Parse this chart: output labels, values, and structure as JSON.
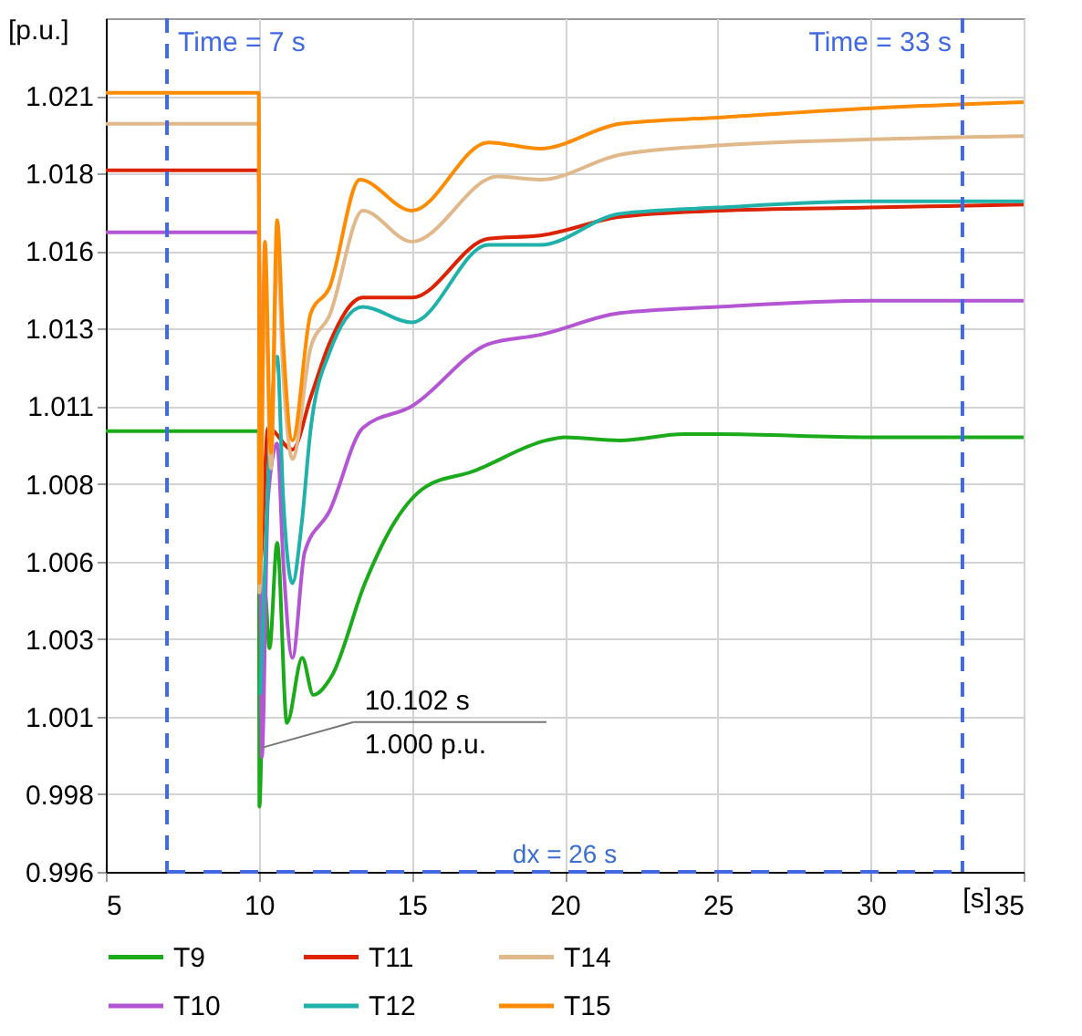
{
  "chart_data": {
    "type": "line",
    "xlabel": "[s]",
    "ylabel": "[p.u.]",
    "xlim": [
      5,
      35
    ],
    "xticks": [
      5,
      10,
      15,
      20,
      25,
      30,
      35
    ],
    "ylim": [
      0.996,
      1.0235
    ],
    "yticks": [
      {
        "value": 0.996,
        "label": "0.996"
      },
      {
        "value": 0.9985,
        "label": "0.998"
      },
      {
        "value": 1.001,
        "label": "1.001"
      },
      {
        "value": 1.0035,
        "label": "1.003"
      },
      {
        "value": 1.006,
        "label": "1.006"
      },
      {
        "value": 1.0085,
        "label": "1.008"
      },
      {
        "value": 1.011,
        "label": "1.011"
      },
      {
        "value": 1.0135,
        "label": "1.013"
      },
      {
        "value": 1.016,
        "label": "1.016"
      },
      {
        "value": 1.0185,
        "label": "1.018"
      },
      {
        "value": 1.021,
        "label": "1.021"
      }
    ],
    "grid": true,
    "legend": "bottom",
    "x": [
      5,
      10,
      10.02,
      10.2,
      10.35,
      10.6,
      10.92,
      11.42,
      11.78,
      12.38,
      13.47,
      14.46,
      15.45,
      17,
      19.4,
      20,
      21.8,
      23.9,
      25,
      30,
      35
    ],
    "series": [
      {
        "name": "T9",
        "color": "#1aaa1a",
        "values": [
          1.0102,
          1.0102,
          0.9981,
          1.005,
          1.0032,
          1.0066,
          1.0008,
          1.0029,
          1.0017,
          1.0023,
          1.0053,
          1.0073,
          1.0084,
          1.0089,
          1.0099,
          1.01,
          1.0099,
          1.0101,
          1.0101,
          1.01,
          1.01
        ]
      },
      {
        "name": "T10",
        "color": "#b455d4",
        "x": [
          5,
          10,
          10.1,
          10.3,
          10.6,
          10.8,
          11.1,
          11.5,
          12.3,
          13.4,
          15,
          17.5,
          19.2,
          21.8,
          25,
          30,
          35
        ],
        "values": [
          1.0166,
          1.0166,
          0.9997,
          1.008,
          1.0098,
          1.006,
          1.0029,
          1.0063,
          1.0076,
          1.0103,
          1.011,
          1.013,
          1.0133,
          1.014,
          1.0142,
          1.0144,
          1.0144
        ]
      },
      {
        "name": "T11",
        "color": "#dd2200",
        "x": [
          5,
          10,
          10.05,
          10.3,
          11.1,
          11.7,
          12.3,
          13.4,
          15,
          17.5,
          19.2,
          21.8,
          25,
          30,
          35
        ],
        "values": [
          1.0186,
          1.0186,
          1.006,
          1.0103,
          1.0096,
          1.0113,
          1.013,
          1.0145,
          1.0145,
          1.0164,
          1.0165,
          1.0171,
          1.0173,
          1.0174,
          1.0175
        ]
      },
      {
        "name": "T12",
        "color": "#20b2aa",
        "x": [
          10.05,
          10.3,
          10.6,
          10.8,
          11.1,
          11.4,
          11.7,
          12.3,
          13.4,
          15,
          17.5,
          19.2,
          21.8,
          25,
          30,
          35
        ],
        "values": [
          1.0017,
          1.0085,
          1.0126,
          1.008,
          1.0053,
          1.0072,
          1.0103,
          1.0127,
          1.0142,
          1.0137,
          1.0162,
          1.0162,
          1.0172,
          1.0174,
          1.0176,
          1.0176
        ]
      },
      {
        "name": "T14",
        "color": "#e0b88a",
        "x": [
          5,
          10,
          10.02,
          10.2,
          10.4,
          10.6,
          10.8,
          11.1,
          11.7,
          12.3,
          13.4,
          15,
          17.8,
          19.2,
          21.8,
          25,
          30,
          35
        ],
        "values": [
          1.0201,
          1.0201,
          1.005,
          1.015,
          1.009,
          1.016,
          1.012,
          1.0093,
          1.0129,
          1.0139,
          1.0173,
          1.0163,
          1.0184,
          1.0183,
          1.0191,
          1.0194,
          1.0196,
          1.0197
        ]
      },
      {
        "name": "T15",
        "color": "#ff8c00",
        "x": [
          5,
          10,
          10.02,
          10.2,
          10.4,
          10.6,
          10.8,
          11.1,
          11.7,
          12.3,
          13.3,
          15,
          17.5,
          19.2,
          21.8,
          25,
          30,
          35
        ],
        "values": [
          1.0211,
          1.0211,
          1.0053,
          1.0163,
          1.0095,
          1.017,
          1.013,
          1.0099,
          1.014,
          1.0148,
          1.0183,
          1.0173,
          1.0195,
          1.0193,
          1.0201,
          1.0203,
          1.0206,
          1.0208
        ]
      }
    ],
    "ref_lines": [
      {
        "axis": "x",
        "value": 7,
        "label": "Time = 7 s",
        "color": "#4169e1",
        "line_style": "dashed"
      },
      {
        "axis": "x",
        "value": 33,
        "label": "Time = 33 s",
        "color": "#4169e1",
        "line_style": "dashed"
      }
    ],
    "annotations": [
      {
        "text": "10.102 s\n1.000 p.u.",
        "x": 10.102,
        "y": 1.0
      },
      "dx = 26 s"
    ]
  }
}
